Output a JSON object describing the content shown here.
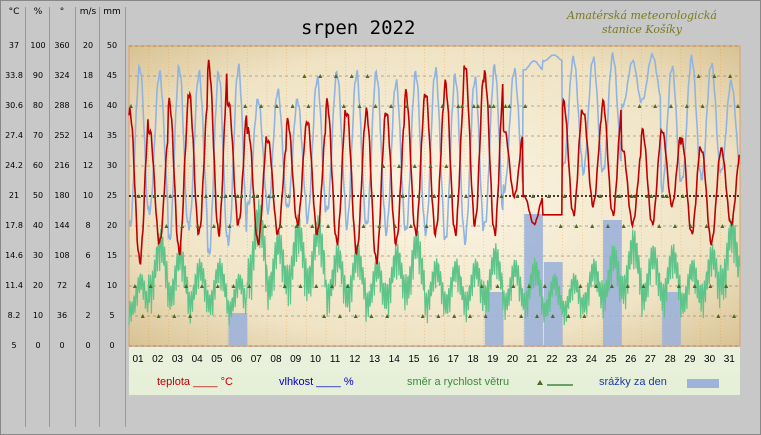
{
  "title": "srpen 2022",
  "station": {
    "line1": "Amatérská meteorologická",
    "line2": "stanice Košíky"
  },
  "axes": {
    "headers": [
      "°C",
      "%",
      "°",
      "m/s",
      "mm"
    ],
    "columns": [
      [
        "37",
        "33.8",
        "30.6",
        "27.4",
        "24.2",
        "21",
        "17.8",
        "14.6",
        "11.4",
        "8.2",
        "5"
      ],
      [
        "100",
        "90",
        "80",
        "70",
        "60",
        "50",
        "40",
        "30",
        "20",
        "10",
        "0"
      ],
      [
        "360",
        "324",
        "288",
        "252",
        "216",
        "180",
        "144",
        "108",
        "72",
        "36",
        "0"
      ],
      [
        "20",
        "18",
        "16",
        "14",
        "12",
        "10",
        "8",
        "6",
        "4",
        "2",
        "0"
      ],
      [
        "50",
        "45",
        "40",
        "35",
        "30",
        "25",
        "20",
        "15",
        "10",
        "5",
        "0"
      ]
    ]
  },
  "legend": {
    "temp": "teplota ____ °C",
    "hum": "vlhkost ____ %",
    "wind": "směr a rychlost větru",
    "rain": "srážky za den"
  },
  "colors": {
    "temp": "#c00000",
    "hum": "#8fb4e3",
    "wind": "#5fc48a",
    "winddir": "#4b6a22",
    "rain": "#9db3d9",
    "dayline": "#ff8800"
  },
  "chart_data": {
    "type": "line",
    "title": "srpen 2022",
    "x_categories": [
      "01",
      "02",
      "03",
      "04",
      "05",
      "06",
      "07",
      "08",
      "09",
      "10",
      "11",
      "12",
      "13",
      "14",
      "15",
      "16",
      "17",
      "18",
      "19",
      "20",
      "21",
      "22",
      "23",
      "24",
      "25",
      "26",
      "27",
      "28",
      "29",
      "30",
      "31"
    ],
    "temp_daily_minmax_c": [
      [
        14,
        30
      ],
      [
        16,
        28
      ],
      [
        15,
        31
      ],
      [
        17,
        32
      ],
      [
        17,
        35
      ],
      [
        18,
        31
      ],
      [
        16,
        28
      ],
      [
        17,
        27
      ],
      [
        18,
        29
      ],
      [
        17,
        29
      ],
      [
        16,
        31
      ],
      [
        15,
        30
      ],
      [
        14,
        30
      ],
      [
        16,
        30
      ],
      [
        17,
        32
      ],
      [
        17,
        32
      ],
      [
        17,
        33
      ],
      [
        18,
        35
      ],
      [
        17,
        34
      ],
      [
        21,
        28
      ],
      [
        18,
        21
      ],
      [
        19,
        19
      ],
      [
        19,
        31
      ],
      [
        20,
        30
      ],
      [
        19,
        31
      ],
      [
        18,
        26
      ],
      [
        18,
        28
      ],
      [
        20,
        28
      ],
      [
        17,
        27
      ],
      [
        16,
        26
      ],
      [
        18,
        26
      ]
    ],
    "humidity_daily_minmax_pct": [
      [
        40,
        93
      ],
      [
        45,
        91
      ],
      [
        35,
        93
      ],
      [
        40,
        91
      ],
      [
        30,
        91
      ],
      [
        35,
        93
      ],
      [
        47,
        82
      ],
      [
        45,
        85
      ],
      [
        46,
        82
      ],
      [
        42,
        89
      ],
      [
        45,
        91
      ],
      [
        40,
        91
      ],
      [
        40,
        91
      ],
      [
        38,
        88
      ],
      [
        38,
        91
      ],
      [
        38,
        92
      ],
      [
        35,
        90
      ],
      [
        35,
        89
      ],
      [
        40,
        93
      ],
      [
        52,
        92
      ],
      [
        92,
        95
      ],
      [
        95,
        97
      ],
      [
        60,
        96
      ],
      [
        58,
        96
      ],
      [
        58,
        97
      ],
      [
        80,
        95
      ],
      [
        82,
        97
      ],
      [
        52,
        93
      ],
      [
        55,
        96
      ],
      [
        56,
        94
      ],
      [
        58,
        88
      ]
    ],
    "wind_speed_daily_max_ms": [
      5,
      8,
      7,
      6,
      6,
      5,
      10,
      8,
      9,
      9,
      7,
      7,
      6,
      7,
      8,
      6,
      6,
      6,
      7,
      6,
      6,
      5,
      5,
      6,
      7,
      8,
      7,
      7,
      6,
      7,
      9
    ],
    "precip_mm": [
      0,
      0,
      0,
      0,
      0,
      5.5,
      0,
      0,
      0,
      0,
      0,
      0,
      0,
      0,
      0,
      0,
      0,
      0,
      9,
      0,
      22,
      14,
      0,
      0,
      21,
      0,
      0,
      9,
      0,
      0,
      0
    ],
    "ylim": {
      "temp": [
        5,
        37
      ],
      "humidity": [
        0,
        100
      ],
      "direction": [
        0,
        360
      ],
      "wind": [
        0,
        20
      ],
      "precip": [
        0,
        50
      ]
    },
    "reference_line_c": 21
  }
}
